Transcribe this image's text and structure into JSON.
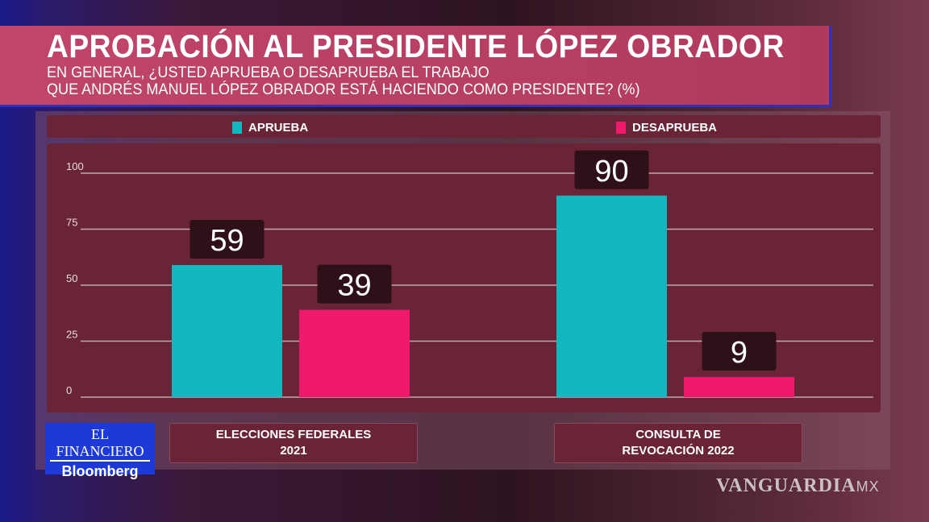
{
  "chart_data": {
    "type": "bar",
    "title": "APROBACIÓN AL PRESIDENTE LÓPEZ OBRADOR",
    "subtitle": "EN GENERAL, ¿USTED APRUEBA O DESAPRUEBA EL TRABAJO\nQUE ANDRÉS MANUEL LÓPEZ OBRADOR ESTÁ HACIENDO COMO PRESIDENTE? (%)",
    "categories": [
      "ELECCIONES FEDERALES\n2021",
      "CONSULTA DE\nREVOCACIÓN 2022"
    ],
    "series": [
      {
        "name": "APRUEBA",
        "color": "#12b7c0",
        "values": [
          59,
          90
        ]
      },
      {
        "name": "DESAPRUEBA",
        "color": "#f01a6c",
        "values": [
          39,
          9
        ]
      }
    ],
    "yticks": [
      "0",
      "25",
      "50",
      "75",
      "100"
    ],
    "ylim": [
      0,
      100
    ],
    "grid": true,
    "legend": "top"
  },
  "branding": {
    "logo_top": "EL FINANCIERO",
    "logo_bottom": "Bloomberg",
    "watermark": "VANGUARDIA",
    "watermark_suffix": "MX"
  }
}
